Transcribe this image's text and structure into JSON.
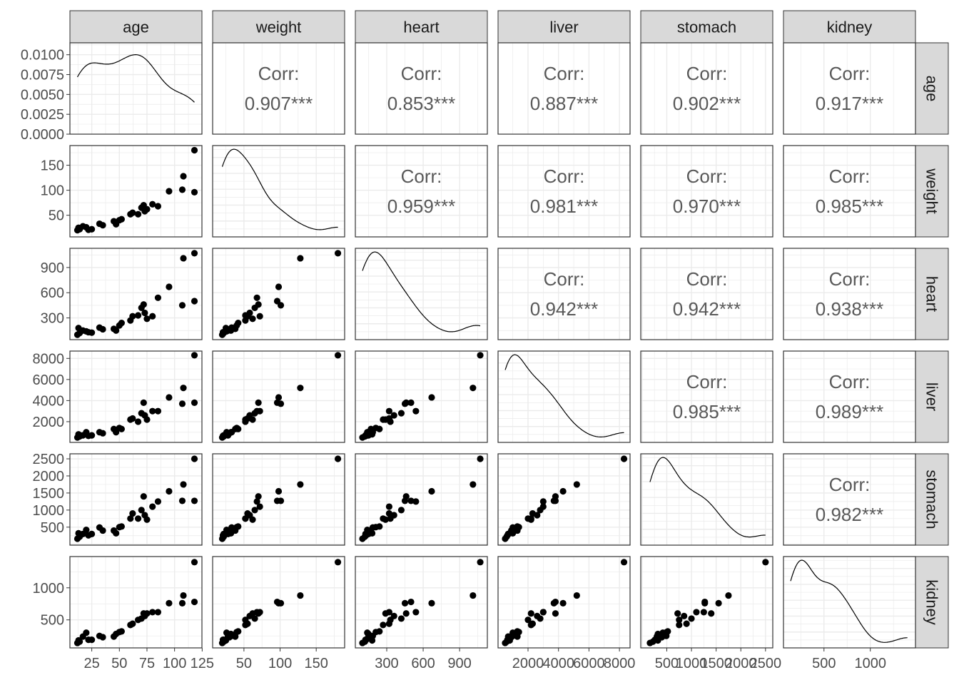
{
  "chart_data": {
    "type": "scatter",
    "title": "",
    "variables": [
      "age",
      "weight",
      "heart",
      "liver",
      "stomach",
      "kidney"
    ],
    "ranges": {
      "age": [
        10,
        120
      ],
      "weight": [
        14,
        182
      ],
      "heart": [
        85,
        1085
      ],
      "liver": [
        380,
        8350
      ],
      "stomach": [
        80,
        2540
      ],
      "kidney": [
        120,
        1430
      ]
    },
    "density_y_range": [
      0,
      0.0115
    ],
    "x_ticks": {
      "age": [
        25,
        50,
        75,
        100,
        125
      ],
      "weight": [
        50,
        100,
        150
      ],
      "heart": [
        300,
        600,
        900
      ],
      "liver": [
        2000,
        4000,
        6000,
        8000
      ],
      "stomach": [
        500,
        1000,
        1500,
        2000,
        2500
      ],
      "kidney": [
        500,
        1000
      ]
    },
    "x_tick_labels": {
      "age": [
        "25",
        "50",
        "75",
        "100",
        "125"
      ],
      "weight": [
        "50",
        "100",
        "150"
      ],
      "heart": [
        "300",
        "600",
        "900"
      ],
      "liver": [
        "2000",
        "4000",
        "6000",
        "8000"
      ],
      "stomach": [
        "500",
        "1000",
        "1500",
        "2000",
        "2500"
      ],
      "kidney": [
        "500",
        "1000"
      ]
    },
    "y_ticks": {
      "age": [
        0,
        0.0025,
        0.005,
        0.0075,
        0.01
      ],
      "weight": [
        50,
        100,
        150
      ],
      "heart": [
        300,
        600,
        900
      ],
      "liver": [
        2000,
        4000,
        6000,
        8000
      ],
      "stomach": [
        500,
        1000,
        1500,
        2000,
        2500
      ],
      "kidney": [
        500,
        1000
      ]
    },
    "y_tick_labels": {
      "age": [
        "0.0000",
        "0.0025",
        "0.0050",
        "0.0075",
        "0.0100"
      ],
      "weight": [
        "50",
        "100",
        "150"
      ],
      "heart": [
        "300",
        "600",
        "900"
      ],
      "liver": [
        "2000",
        "4000",
        "6000",
        "8000"
      ],
      "stomach": [
        "500",
        "1000",
        "1500",
        "2000",
        "2500"
      ],
      "kidney": [
        "500",
        "1000"
      ]
    },
    "correlations": [
      {
        "row": "age",
        "col": "weight",
        "label": "Corr:",
        "value": "0.907***"
      },
      {
        "row": "age",
        "col": "heart",
        "label": "Corr:",
        "value": "0.853***"
      },
      {
        "row": "age",
        "col": "liver",
        "label": "Corr:",
        "value": "0.887***"
      },
      {
        "row": "age",
        "col": "stomach",
        "label": "Corr:",
        "value": "0.902***"
      },
      {
        "row": "age",
        "col": "kidney",
        "label": "Corr:",
        "value": "0.917***"
      },
      {
        "row": "weight",
        "col": "heart",
        "label": "Corr:",
        "value": "0.959***"
      },
      {
        "row": "weight",
        "col": "liver",
        "label": "Corr:",
        "value": "0.981***"
      },
      {
        "row": "weight",
        "col": "stomach",
        "label": "Corr:",
        "value": "0.970***"
      },
      {
        "row": "weight",
        "col": "kidney",
        "label": "Corr:",
        "value": "0.985***"
      },
      {
        "row": "heart",
        "col": "liver",
        "label": "Corr:",
        "value": "0.942***"
      },
      {
        "row": "heart",
        "col": "stomach",
        "label": "Corr:",
        "value": "0.942***"
      },
      {
        "row": "heart",
        "col": "kidney",
        "label": "Corr:",
        "value": "0.938***"
      },
      {
        "row": "liver",
        "col": "stomach",
        "label": "Corr:",
        "value": "0.985***"
      },
      {
        "row": "liver",
        "col": "kidney",
        "label": "Corr:",
        "value": "0.989***"
      },
      {
        "row": "stomach",
        "col": "kidney",
        "label": "Corr:",
        "value": "0.982***"
      }
    ],
    "observations": [
      {
        "age": 12,
        "weight": 20,
        "heart": 100,
        "liver": 500,
        "stomach": 160,
        "kidney": 140
      },
      {
        "age": 13,
        "weight": 25,
        "heart": 180,
        "liver": 800,
        "stomach": 320,
        "kidney": 180
      },
      {
        "age": 14,
        "weight": 22,
        "heart": 120,
        "liver": 600,
        "stomach": 220,
        "kidney": 160
      },
      {
        "age": 17,
        "weight": 28,
        "heart": 150,
        "liver": 700,
        "stomach": 300,
        "kidney": 240
      },
      {
        "age": 20,
        "weight": 26,
        "heart": 140,
        "liver": 1000,
        "stomach": 420,
        "kidney": 300
      },
      {
        "age": 22,
        "weight": 21,
        "heart": 130,
        "liver": 650,
        "stomach": 260,
        "kidney": 190
      },
      {
        "age": 25,
        "weight": 22,
        "heart": 125,
        "liver": 700,
        "stomach": 300,
        "kidney": 190
      },
      {
        "age": 32,
        "weight": 33,
        "heart": 185,
        "liver": 1000,
        "stomach": 490,
        "kidney": 250
      },
      {
        "age": 35,
        "weight": 30,
        "heart": 165,
        "liver": 900,
        "stomach": 400,
        "kidney": 230
      },
      {
        "age": 45,
        "weight": 38,
        "heart": 170,
        "liver": 1300,
        "stomach": 400,
        "kidney": 240
      },
      {
        "age": 47,
        "weight": 32,
        "heart": 150,
        "liver": 1000,
        "stomach": 320,
        "kidney": 280
      },
      {
        "age": 50,
        "weight": 40,
        "heart": 210,
        "liver": 1400,
        "stomach": 500,
        "kidney": 310
      },
      {
        "age": 52,
        "weight": 42,
        "heart": 240,
        "liver": 1300,
        "stomach": 520,
        "kidney": 320
      },
      {
        "age": 60,
        "weight": 52,
        "heart": 270,
        "liver": 2200,
        "stomach": 750,
        "kidney": 420
      },
      {
        "age": 62,
        "weight": 55,
        "heart": 320,
        "liver": 2300,
        "stomach": 900,
        "kidney": 440
      },
      {
        "age": 67,
        "weight": 52,
        "heart": 330,
        "liver": 2000,
        "stomach": 750,
        "kidney": 500
      },
      {
        "age": 70,
        "weight": 65,
        "heart": 420,
        "liver": 2800,
        "stomach": 1000,
        "kidney": 520
      },
      {
        "age": 72,
        "weight": 70,
        "heart": 460,
        "liver": 3800,
        "stomach": 1400,
        "kidney": 600
      },
      {
        "age": 73,
        "weight": 58,
        "heart": 360,
        "liver": 2600,
        "stomach": 850,
        "kidney": 560
      },
      {
        "age": 75,
        "weight": 62,
        "heart": 290,
        "liver": 2200,
        "stomach": 720,
        "kidney": 600
      },
      {
        "age": 80,
        "weight": 72,
        "heart": 320,
        "liver": 3000,
        "stomach": 1100,
        "kidney": 620
      },
      {
        "age": 85,
        "weight": 68,
        "heart": 540,
        "liver": 3000,
        "stomach": 1250,
        "kidney": 620
      },
      {
        "age": 95,
        "weight": 98,
        "heart": 670,
        "liver": 4300,
        "stomach": 1550,
        "kidney": 760
      },
      {
        "age": 107,
        "weight": 101,
        "heart": 450,
        "liver": 3700,
        "stomach": 1270,
        "kidney": 760
      },
      {
        "age": 108,
        "weight": 128,
        "heart": 1010,
        "liver": 5200,
        "stomach": 1750,
        "kidney": 880
      },
      {
        "age": 118,
        "weight": 96,
        "heart": 500,
        "liver": 3800,
        "stomach": 1270,
        "kidney": 780
      },
      {
        "age": 118,
        "weight": 180,
        "heart": 1070,
        "liver": 8300,
        "stomach": 2500,
        "kidney": 1400
      }
    ]
  }
}
